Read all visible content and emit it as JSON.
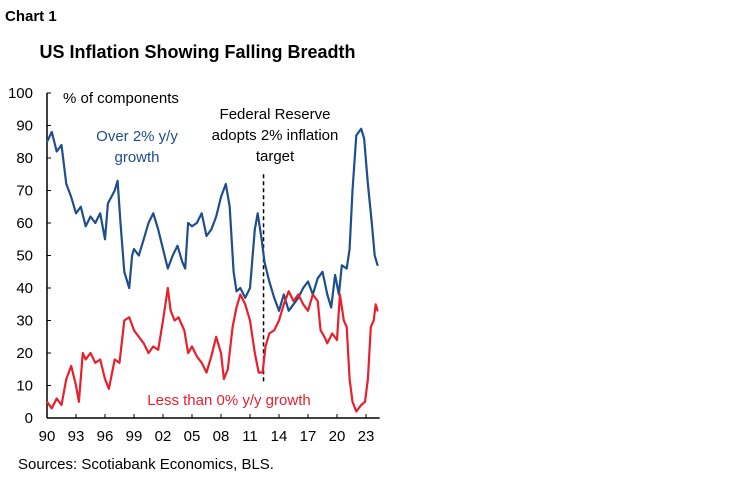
{
  "chart_label": "Chart 1",
  "source": "Sources: Scotiabank Economics, BLS.",
  "chart_data": {
    "type": "line",
    "title": "US Inflation Showing Falling Breadth",
    "ylabel": "% of components",
    "ylim": [
      0,
      100
    ],
    "yticks": [
      0,
      10,
      20,
      30,
      40,
      50,
      60,
      70,
      80,
      90,
      100
    ],
    "xlim": [
      1990,
      2024.2
    ],
    "xticks": [
      1990,
      1993,
      1996,
      1999,
      2002,
      2005,
      2008,
      2011,
      2014,
      2017,
      2020,
      2023
    ],
    "xtick_labels": [
      "90",
      "93",
      "96",
      "99",
      "02",
      "05",
      "08",
      "11",
      "14",
      "17",
      "20",
      "23"
    ],
    "grid": false,
    "annotations": [
      {
        "text_lines": [
          "Federal Reserve",
          "adopts 2% inflation",
          "target"
        ],
        "x": 2012.4,
        "style": "dashed-vertical",
        "y_top": 75
      }
    ],
    "series": [
      {
        "name": "Over 2% y/y growth",
        "name_lines": [
          "Over 2% y/y",
          "growth"
        ],
        "color": "#1f4e8c",
        "x": [
          1990,
          1990.5,
          1991,
          1991.5,
          1992,
          1992.5,
          1993,
          1993.5,
          1994,
          1994.5,
          1995,
          1995.5,
          1996,
          1996.3,
          1997,
          1997.3,
          1997.6,
          1998,
          1998.5,
          1998.8,
          1999,
          1999.5,
          2000,
          2000.5,
          2001,
          2001.5,
          2002,
          2002.5,
          2003,
          2003.5,
          2004,
          2004.3,
          2004.6,
          2005,
          2005.5,
          2006,
          2006.5,
          2007,
          2007.5,
          2008,
          2008.5,
          2008.9,
          2009.3,
          2009.6,
          2010,
          2010.5,
          2011,
          2011.5,
          2011.8,
          2012.2,
          2012.5,
          2013,
          2013.5,
          2014,
          2014.5,
          2015,
          2015.5,
          2016,
          2016.5,
          2017,
          2017.5,
          2018,
          2018.5,
          2019,
          2019.4,
          2019.8,
          2020.2,
          2020.5,
          2021,
          2021.3,
          2021.6,
          2022,
          2022.5,
          2022.8,
          2023.2,
          2023.6,
          2023.9,
          2024.2
        ],
        "values": [
          85,
          88,
          82,
          84,
          72,
          68,
          63,
          65,
          59,
          62,
          60,
          63,
          55,
          66,
          70,
          73,
          60,
          45,
          40,
          50,
          52,
          50,
          55,
          60,
          63,
          58,
          52,
          46,
          50,
          53,
          48,
          46,
          60,
          59,
          60,
          63,
          56,
          58,
          62,
          68,
          72,
          65,
          45,
          39,
          40,
          37,
          40,
          58,
          63,
          55,
          48,
          42,
          37,
          33,
          38,
          33,
          35,
          37,
          40,
          42,
          38,
          43,
          45,
          38,
          34,
          44,
          38,
          47,
          46,
          52,
          70,
          87,
          89,
          86,
          72,
          60,
          50,
          47
        ]
      },
      {
        "name": "Less than 0% y/y growth",
        "color": "#e8202e",
        "x": [
          1990,
          1990.5,
          1991,
          1991.5,
          1992,
          1992.5,
          1993,
          1993.3,
          1993.7,
          1994,
          1994.5,
          1995,
          1995.5,
          1996,
          1996.4,
          1997,
          1997.5,
          1998,
          1998.5,
          1999,
          1999.5,
          2000,
          2000.5,
          2001,
          2001.5,
          2002,
          2002.5,
          2002.8,
          2003.2,
          2003.6,
          2004.2,
          2004.6,
          2005,
          2005.5,
          2006,
          2006.5,
          2007,
          2007.5,
          2008,
          2008.3,
          2008.7,
          2009.2,
          2009.6,
          2010,
          2010.5,
          2011,
          2011.5,
          2011.9,
          2012.3,
          2012.6,
          2013,
          2013.5,
          2014,
          2014.5,
          2015,
          2015.5,
          2016,
          2016.5,
          2017,
          2017.5,
          2018,
          2018.3,
          2018.7,
          2019,
          2019.5,
          2020,
          2020.3,
          2020.7,
          2021,
          2021.3,
          2021.6,
          2022,
          2022.5,
          2022.9,
          2023.2,
          2023.5,
          2023.8,
          2024,
          2024.2
        ],
        "values": [
          5,
          3,
          6,
          4,
          12,
          16,
          10,
          5,
          20,
          18,
          20,
          17,
          18,
          12,
          9,
          18,
          17,
          30,
          31,
          27,
          25,
          23,
          20,
          22,
          21,
          30,
          40,
          33,
          30,
          31,
          27,
          20,
          22,
          19,
          17,
          14,
          19,
          25,
          20,
          12,
          15,
          28,
          34,
          38,
          35,
          30,
          20,
          14,
          14,
          22,
          26,
          27,
          30,
          35,
          39,
          36,
          38,
          35,
          33,
          38,
          36,
          27,
          25,
          23,
          26,
          24,
          38,
          30,
          28,
          12,
          5,
          2,
          4,
          5,
          12,
          28,
          30,
          35,
          33
        ]
      }
    ]
  }
}
